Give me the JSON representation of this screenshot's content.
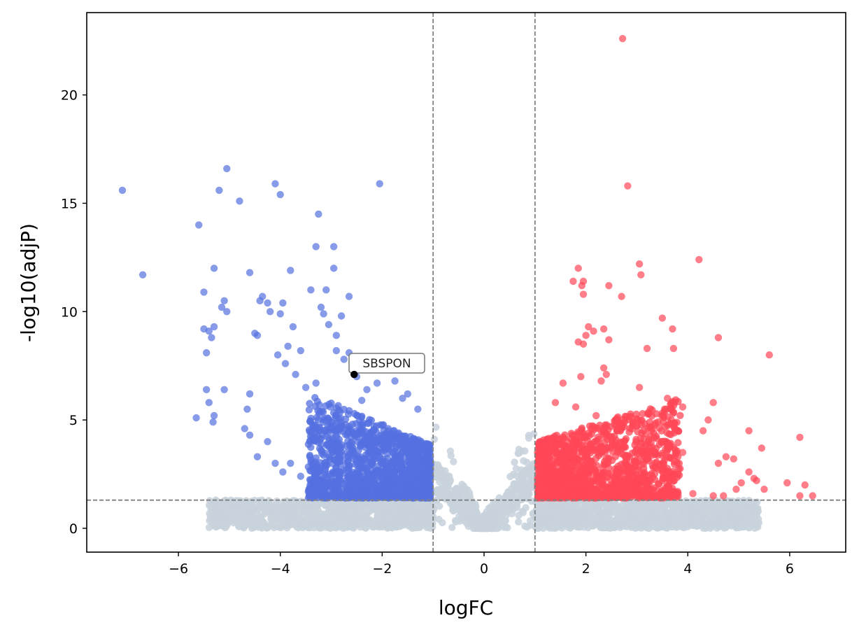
{
  "chart_data": {
    "type": "scatter",
    "title": "",
    "xlabel": "logFC",
    "ylabel": "-log10(adjP)",
    "xlim": [
      -7.8,
      7.1
    ],
    "ylim": [
      -1.1,
      23.8
    ],
    "xticks": [
      -6,
      -4,
      -2,
      0,
      2,
      4,
      6
    ],
    "xtick_labels": [
      "−6",
      "−4",
      "−2",
      "0",
      "2",
      "4",
      "6"
    ],
    "yticks": [
      0,
      5,
      10,
      15,
      20
    ],
    "ytick_labels": [
      "0",
      "5",
      "10",
      "15",
      "20"
    ],
    "thresholds": {
      "logFC_low": -1,
      "logFC_high": 1,
      "neg_log10_adjP": 1.3
    },
    "colors": {
      "down": "#5470e0",
      "up": "#ff4757",
      "ns": "#c8d2dc",
      "highlight": "#000000",
      "threshold_line": "#808080"
    },
    "annotation": {
      "label": "SBSPON",
      "x": -2.55,
      "y": 7.1
    },
    "series": [
      {
        "name": "down",
        "points": [
          [
            -7.1,
            15.6
          ],
          [
            -6.7,
            11.7
          ],
          [
            -5.6,
            14.0
          ],
          [
            -5.65,
            5.1
          ],
          [
            -5.4,
            9.1
          ],
          [
            -5.5,
            9.2
          ],
          [
            -5.3,
            9.3
          ],
          [
            -5.35,
            8.8
          ],
          [
            -5.45,
            8.1
          ],
          [
            -5.5,
            10.9
          ],
          [
            -5.3,
            12.0
          ],
          [
            -5.2,
            15.6
          ],
          [
            -5.05,
            16.6
          ],
          [
            -5.1,
            10.5
          ],
          [
            -5.15,
            10.2
          ],
          [
            -5.05,
            10.0
          ],
          [
            -5.45,
            6.4
          ],
          [
            -5.4,
            5.8
          ],
          [
            -5.3,
            5.2
          ],
          [
            -5.32,
            4.9
          ],
          [
            -5.1,
            6.4
          ],
          [
            -4.8,
            15.1
          ],
          [
            -4.6,
            11.8
          ],
          [
            -4.5,
            9.0
          ],
          [
            -4.45,
            8.9
          ],
          [
            -4.35,
            10.7
          ],
          [
            -4.4,
            10.5
          ],
          [
            -4.25,
            10.4
          ],
          [
            -4.1,
            15.9
          ],
          [
            -4.0,
            15.4
          ],
          [
            -4.2,
            10.0
          ],
          [
            -4.0,
            9.9
          ],
          [
            -3.95,
            10.4
          ],
          [
            -3.8,
            11.9
          ],
          [
            -3.75,
            9.3
          ],
          [
            -3.6,
            8.2
          ],
          [
            -3.4,
            11.0
          ],
          [
            -3.25,
            14.5
          ],
          [
            -3.3,
            13.0
          ],
          [
            -3.2,
            10.2
          ],
          [
            -3.1,
            11.0
          ],
          [
            -3.15,
            9.9
          ],
          [
            -3.05,
            9.4
          ],
          [
            -2.95,
            13.0
          ],
          [
            -2.95,
            12.0
          ],
          [
            -2.65,
            10.7
          ],
          [
            -2.8,
            9.8
          ],
          [
            -2.9,
            8.9
          ],
          [
            -2.05,
            15.9
          ],
          [
            -2.9,
            8.2
          ],
          [
            -2.75,
            7.8
          ],
          [
            -2.65,
            8.1
          ],
          [
            -2.5,
            7.0
          ],
          [
            -3.5,
            6.5
          ],
          [
            -3.3,
            6.7
          ],
          [
            -3.7,
            7.1
          ],
          [
            -3.9,
            7.6
          ],
          [
            -4.05,
            8.0
          ],
          [
            -3.85,
            8.4
          ],
          [
            -2.1,
            6.7
          ],
          [
            -1.75,
            6.8
          ],
          [
            -1.5,
            6.2
          ],
          [
            -1.3,
            5.5
          ],
          [
            -1.6,
            6.0
          ],
          [
            -2.3,
            6.4
          ],
          [
            -2.4,
            5.9
          ],
          [
            -4.6,
            6.2
          ],
          [
            -4.65,
            5.5
          ],
          [
            -4.7,
            4.6
          ],
          [
            -4.6,
            4.3
          ],
          [
            -4.45,
            3.3
          ],
          [
            -4.25,
            4.0
          ],
          [
            -4.1,
            3.0
          ],
          [
            -3.95,
            2.6
          ],
          [
            -3.8,
            3.0
          ],
          [
            -3.6,
            2.4
          ],
          [
            -3.35,
            2.1
          ],
          [
            -3.15,
            1.6
          ],
          [
            -3.0,
            1.9
          ],
          [
            -2.7,
            1.8
          ],
          [
            -2.4,
            1.7
          ],
          [
            -2.1,
            1.8
          ],
          [
            -1.8,
            1.7
          ],
          [
            -1.5,
            1.8
          ],
          [
            -1.3,
            1.7
          ],
          [
            -1.1,
            1.9
          ],
          [
            -2.55,
            7.1
          ]
        ]
      },
      {
        "name": "up",
        "points": [
          [
            2.72,
            22.6
          ],
          [
            2.82,
            15.8
          ],
          [
            4.22,
            12.4
          ],
          [
            1.85,
            12.0
          ],
          [
            3.05,
            12.2
          ],
          [
            3.08,
            11.7
          ],
          [
            1.75,
            11.4
          ],
          [
            1.95,
            11.4
          ],
          [
            1.92,
            11.2
          ],
          [
            2.45,
            11.2
          ],
          [
            1.95,
            10.8
          ],
          [
            2.7,
            10.7
          ],
          [
            3.5,
            9.7
          ],
          [
            3.7,
            9.2
          ],
          [
            2.05,
            9.3
          ],
          [
            2.15,
            9.1
          ],
          [
            2.35,
            9.2
          ],
          [
            2.0,
            8.9
          ],
          [
            2.45,
            8.7
          ],
          [
            1.85,
            8.6
          ],
          [
            1.95,
            8.5
          ],
          [
            3.2,
            8.3
          ],
          [
            3.72,
            8.3
          ],
          [
            4.6,
            8.8
          ],
          [
            5.6,
            8.0
          ],
          [
            1.9,
            7.0
          ],
          [
            2.35,
            7.4
          ],
          [
            2.4,
            7.1
          ],
          [
            2.3,
            6.8
          ],
          [
            1.55,
            6.7
          ],
          [
            3.05,
            6.5
          ],
          [
            3.6,
            6.0
          ],
          [
            3.9,
            5.6
          ],
          [
            4.5,
            5.8
          ],
          [
            5.2,
            4.5
          ],
          [
            5.45,
            3.7
          ],
          [
            6.2,
            4.2
          ],
          [
            4.3,
            4.5
          ],
          [
            4.4,
            5.0
          ],
          [
            4.75,
            3.3
          ],
          [
            4.6,
            3.0
          ],
          [
            4.9,
            3.2
          ],
          [
            5.2,
            2.6
          ],
          [
            5.05,
            2.1
          ],
          [
            5.3,
            2.3
          ],
          [
            5.35,
            2.2
          ],
          [
            5.5,
            1.8
          ],
          [
            5.95,
            2.1
          ],
          [
            6.3,
            2.0
          ],
          [
            6.45,
            1.5
          ],
          [
            6.2,
            1.5
          ],
          [
            4.95,
            1.8
          ],
          [
            4.7,
            1.5
          ],
          [
            4.5,
            1.5
          ],
          [
            4.1,
            1.6
          ],
          [
            3.8,
            1.7
          ],
          [
            3.5,
            1.7
          ],
          [
            3.2,
            1.8
          ],
          [
            2.8,
            1.6
          ],
          [
            2.5,
            1.7
          ],
          [
            2.1,
            1.7
          ],
          [
            1.8,
            1.6
          ],
          [
            1.5,
            1.7
          ],
          [
            1.2,
            1.8
          ],
          [
            1.05,
            1.9
          ],
          [
            1.4,
            5.8
          ],
          [
            1.8,
            5.6
          ],
          [
            2.2,
            5.2
          ],
          [
            2.9,
            5.1
          ],
          [
            3.3,
            4.6
          ],
          [
            3.55,
            4.7
          ],
          [
            3.9,
            3.5
          ]
        ]
      }
    ]
  }
}
